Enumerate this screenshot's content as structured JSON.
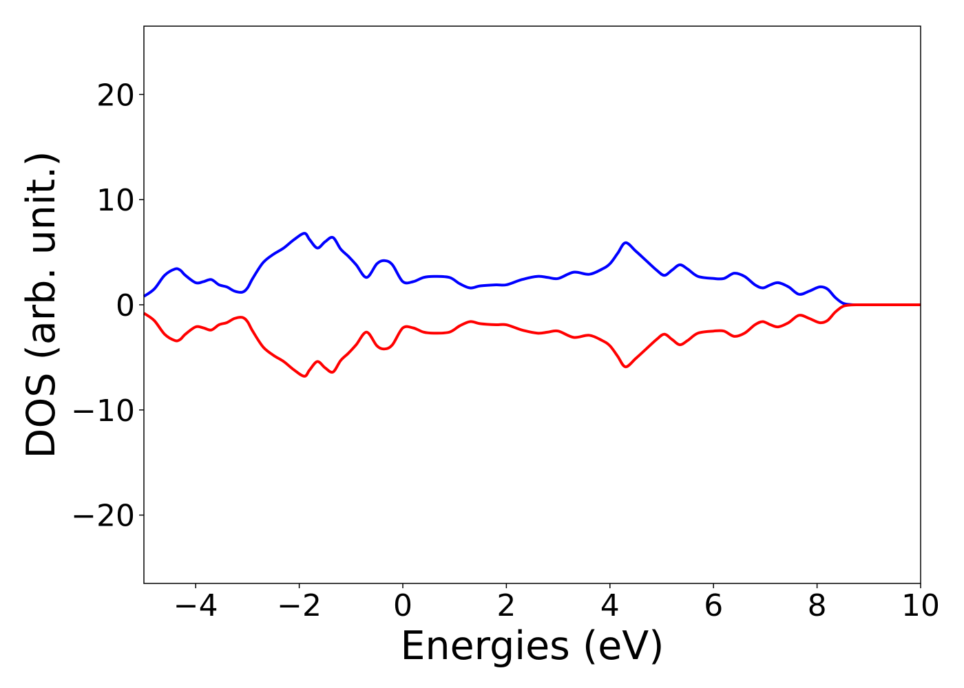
{
  "chart_data": {
    "type": "line",
    "title": "",
    "xlabel": "Energies (eV)",
    "ylabel": "DOS (arb. unit.)",
    "xlim": [
      -5,
      10
    ],
    "ylim": [
      -26.5,
      26.5
    ],
    "xticks": [
      {
        "value": -4,
        "label": "−4"
      },
      {
        "value": -2,
        "label": "−2"
      },
      {
        "value": 0,
        "label": "0"
      },
      {
        "value": 2,
        "label": "2"
      },
      {
        "value": 4,
        "label": "4"
      },
      {
        "value": 6,
        "label": "6"
      },
      {
        "value": 8,
        "label": "8"
      },
      {
        "value": 10,
        "label": "10"
      }
    ],
    "yticks": [
      {
        "value": 20,
        "label": "20"
      },
      {
        "value": 10,
        "label": "10"
      },
      {
        "value": 0,
        "label": "0"
      },
      {
        "value": -10,
        "label": "−10"
      },
      {
        "value": -20,
        "label": "−20"
      }
    ],
    "grid": false,
    "legend": "none",
    "series": [
      {
        "color": "#0000ff",
        "x": [
          -5.0,
          -4.8,
          -4.6,
          -4.4,
          -4.3,
          -4.2,
          -4.0,
          -3.85,
          -3.7,
          -3.55,
          -3.4,
          -3.25,
          -3.1,
          -3.0,
          -2.9,
          -2.7,
          -2.5,
          -2.3,
          -2.1,
          -1.9,
          -1.8,
          -1.65,
          -1.5,
          -1.35,
          -1.2,
          -1.05,
          -0.9,
          -0.7,
          -0.5,
          -0.35,
          -0.2,
          0.0,
          0.2,
          0.4,
          0.6,
          0.9,
          1.1,
          1.3,
          1.5,
          1.8,
          2.0,
          2.3,
          2.6,
          2.8,
          3.0,
          3.3,
          3.6,
          3.85,
          4.0,
          4.15,
          4.3,
          4.5,
          4.7,
          4.9,
          5.05,
          5.2,
          5.35,
          5.5,
          5.7,
          6.0,
          6.2,
          6.4,
          6.6,
          6.8,
          6.95,
          7.1,
          7.25,
          7.45,
          7.65,
          7.85,
          8.05,
          8.2,
          8.35,
          8.5,
          8.65,
          8.8,
          9.0,
          9.5,
          10.0
        ],
        "y": [
          0.8,
          1.5,
          2.8,
          3.4,
          3.3,
          2.8,
          2.1,
          2.2,
          2.4,
          1.9,
          1.7,
          1.3,
          1.2,
          1.6,
          2.5,
          4.0,
          4.8,
          5.4,
          6.2,
          6.8,
          6.2,
          5.4,
          6.0,
          6.4,
          5.3,
          4.6,
          3.8,
          2.6,
          3.9,
          4.2,
          3.8,
          2.2,
          2.2,
          2.6,
          2.7,
          2.6,
          2.0,
          1.6,
          1.8,
          1.9,
          1.9,
          2.4,
          2.7,
          2.6,
          2.5,
          3.1,
          2.9,
          3.4,
          3.9,
          4.9,
          5.9,
          5.1,
          4.2,
          3.3,
          2.8,
          3.3,
          3.8,
          3.4,
          2.7,
          2.5,
          2.5,
          3.0,
          2.7,
          1.9,
          1.6,
          1.9,
          2.1,
          1.7,
          1.0,
          1.3,
          1.7,
          1.5,
          0.7,
          0.15,
          0.02,
          0.0,
          0.0,
          0.0,
          0.0
        ]
      },
      {
        "color": "#ff0000",
        "x": [
          -5.0,
          -4.8,
          -4.6,
          -4.4,
          -4.3,
          -4.2,
          -4.0,
          -3.85,
          -3.7,
          -3.55,
          -3.4,
          -3.25,
          -3.1,
          -3.0,
          -2.9,
          -2.7,
          -2.5,
          -2.3,
          -2.1,
          -1.9,
          -1.8,
          -1.65,
          -1.5,
          -1.35,
          -1.2,
          -1.05,
          -0.9,
          -0.7,
          -0.5,
          -0.35,
          -0.2,
          0.0,
          0.2,
          0.4,
          0.6,
          0.9,
          1.1,
          1.3,
          1.5,
          1.8,
          2.0,
          2.3,
          2.6,
          2.8,
          3.0,
          3.3,
          3.6,
          3.85,
          4.0,
          4.15,
          4.3,
          4.5,
          4.7,
          4.9,
          5.05,
          5.2,
          5.35,
          5.5,
          5.7,
          6.0,
          6.2,
          6.4,
          6.6,
          6.8,
          6.95,
          7.1,
          7.25,
          7.45,
          7.65,
          7.85,
          8.05,
          8.2,
          8.35,
          8.5,
          8.65,
          8.8,
          9.0,
          9.5,
          10.0
        ],
        "y": [
          -0.8,
          -1.5,
          -2.8,
          -3.4,
          -3.3,
          -2.8,
          -2.1,
          -2.2,
          -2.4,
          -1.9,
          -1.7,
          -1.3,
          -1.2,
          -1.6,
          -2.5,
          -4.0,
          -4.8,
          -5.4,
          -6.2,
          -6.8,
          -6.2,
          -5.4,
          -6.0,
          -6.4,
          -5.3,
          -4.6,
          -3.8,
          -2.6,
          -3.9,
          -4.2,
          -3.8,
          -2.2,
          -2.2,
          -2.6,
          -2.7,
          -2.6,
          -2.0,
          -1.6,
          -1.8,
          -1.9,
          -1.9,
          -2.4,
          -2.7,
          -2.6,
          -2.5,
          -3.1,
          -2.9,
          -3.4,
          -3.9,
          -4.9,
          -5.9,
          -5.1,
          -4.2,
          -3.3,
          -2.8,
          -3.3,
          -3.8,
          -3.4,
          -2.7,
          -2.5,
          -2.5,
          -3.0,
          -2.7,
          -1.9,
          -1.6,
          -1.9,
          -2.1,
          -1.7,
          -1.0,
          -1.3,
          -1.7,
          -1.5,
          -0.7,
          -0.15,
          -0.02,
          0.0,
          0.0,
          0.0,
          0.0
        ]
      }
    ]
  }
}
